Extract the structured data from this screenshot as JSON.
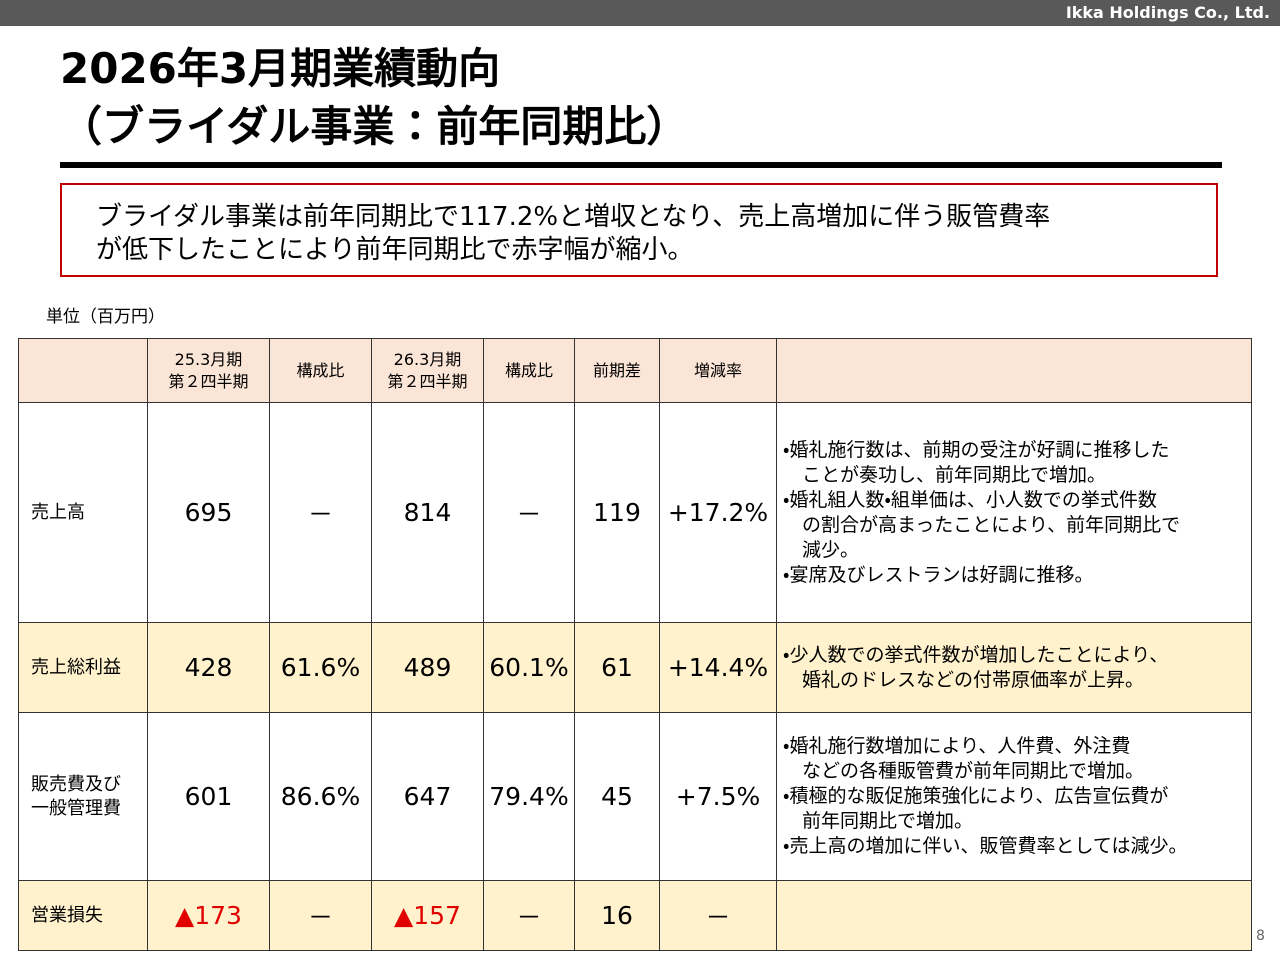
{
  "header": {
    "company": "Ikka Holdings Co., Ltd."
  },
  "title": {
    "lines": [
      "2026年3月期業績動向",
      "（ブライダル事業：前年同期比）"
    ]
  },
  "summary": {
    "lines": [
      "ブライダル事業は前年同期比で117.2%と増収となり、売上高増加に伴う販管費率",
      "が低下したことにより前年同期比で赤字幅が縮小。"
    ]
  },
  "unit": "単位（百万円）",
  "table": {
    "columns": [
      [
        "25.3月期",
        "第２四半期"
      ],
      [
        "構成比"
      ],
      [
        "26.3月期",
        "第２四半期"
      ],
      [
        "構成比"
      ],
      [
        "前期差"
      ],
      [
        "増減率"
      ]
    ],
    "rows": [
      {
        "label": [
          "売上高"
        ],
        "cells": [
          "695",
          "－",
          "814",
          "－",
          "119",
          "+17.2%"
        ],
        "notes": [
          [
            "・婚礼施行数は、前期の受注が好調に推移した",
            "ことが奏功し、前年同期比で増加。"
          ],
          [
            "・婚礼組人数・組単価は、小人数での挙式件数",
            "の割合が高まったことにより、前年同期比で",
            "減少。"
          ],
          [
            "・宴席及びレストランは好調に推移。"
          ]
        ]
      },
      {
        "label": [
          "売上総利益"
        ],
        "cells": [
          "428",
          "61.6%",
          "489",
          "60.1%",
          "61",
          "+14.4%"
        ],
        "notes": [
          [
            "・少人数での挙式件数が増加したことにより、",
            "婚礼のドレスなどの付帯原価率が上昇。"
          ]
        ]
      },
      {
        "label": [
          "販売費及び",
          "一般管理費"
        ],
        "cells": [
          "601",
          "86.6%",
          "647",
          "79.4%",
          "45",
          "+7.5%"
        ],
        "notes": [
          [
            "・婚礼施行数増加により、人件費、外注費",
            "などの各種販管費が前年同期比で増加。"
          ],
          [
            "・積極的な販促施策強化により、広告宣伝費が",
            "前年同期比で増加。"
          ],
          [
            "・売上高の増加に伴い、販管費率としては減少。"
          ]
        ]
      },
      {
        "label": [
          "営業損失"
        ],
        "cells": [
          "▲173",
          "－",
          "▲157",
          "－",
          "16",
          "－"
        ]
      }
    ]
  },
  "page": "8"
}
